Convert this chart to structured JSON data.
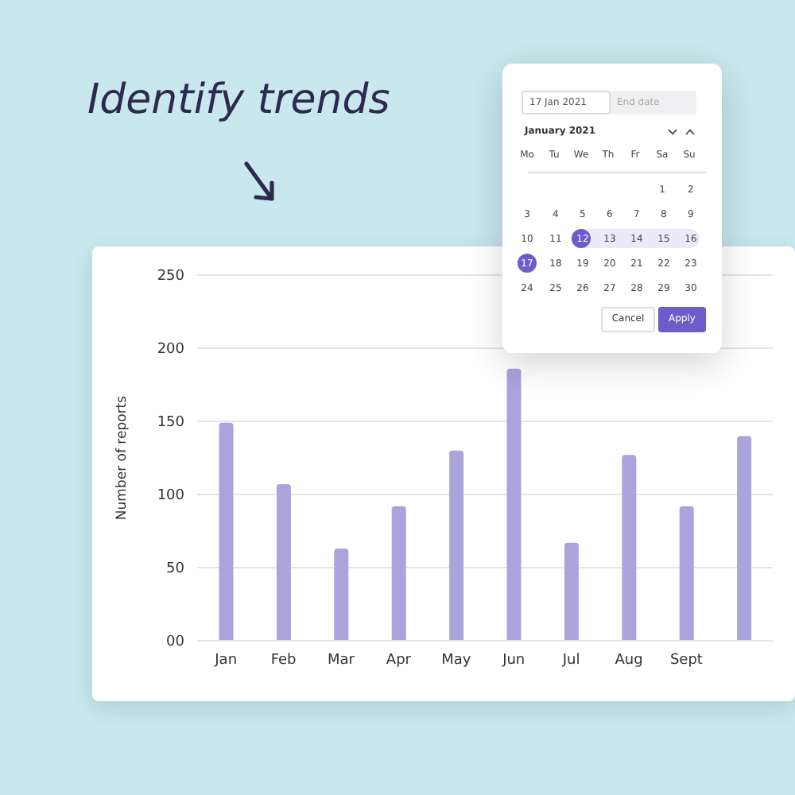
{
  "chart_data": {
    "type": "bar",
    "title": "Identify trends",
    "ylabel": "Number of reports",
    "categories": [
      "Jan",
      "Feb",
      "Mar",
      "Apr",
      "May",
      "Jun",
      "Jul",
      "Aug",
      "Sept",
      null
    ],
    "values": [
      149,
      107,
      63,
      92,
      130,
      186,
      67,
      127,
      92,
      140
    ],
    "color": "#aaa3dc",
    "ylim": [
      0,
      250
    ],
    "yticks": [
      {
        "value": 0,
        "label": "00"
      },
      50,
      100,
      150,
      200,
      250
    ],
    "grid": "y",
    "annotations": [
      "17 Jan 2021",
      "End date",
      "January 2021",
      "Mo",
      "Tu",
      "We",
      "Th",
      "Fr",
      "Sa",
      "Su",
      "1 2",
      "3 4 5 6 7 8 9",
      "10 11 12 13 14 15 16",
      "17 18 19 20 21 22 23",
      "24 25 26 27 28 29 30",
      "Cancel",
      "Apply"
    ]
  }
}
